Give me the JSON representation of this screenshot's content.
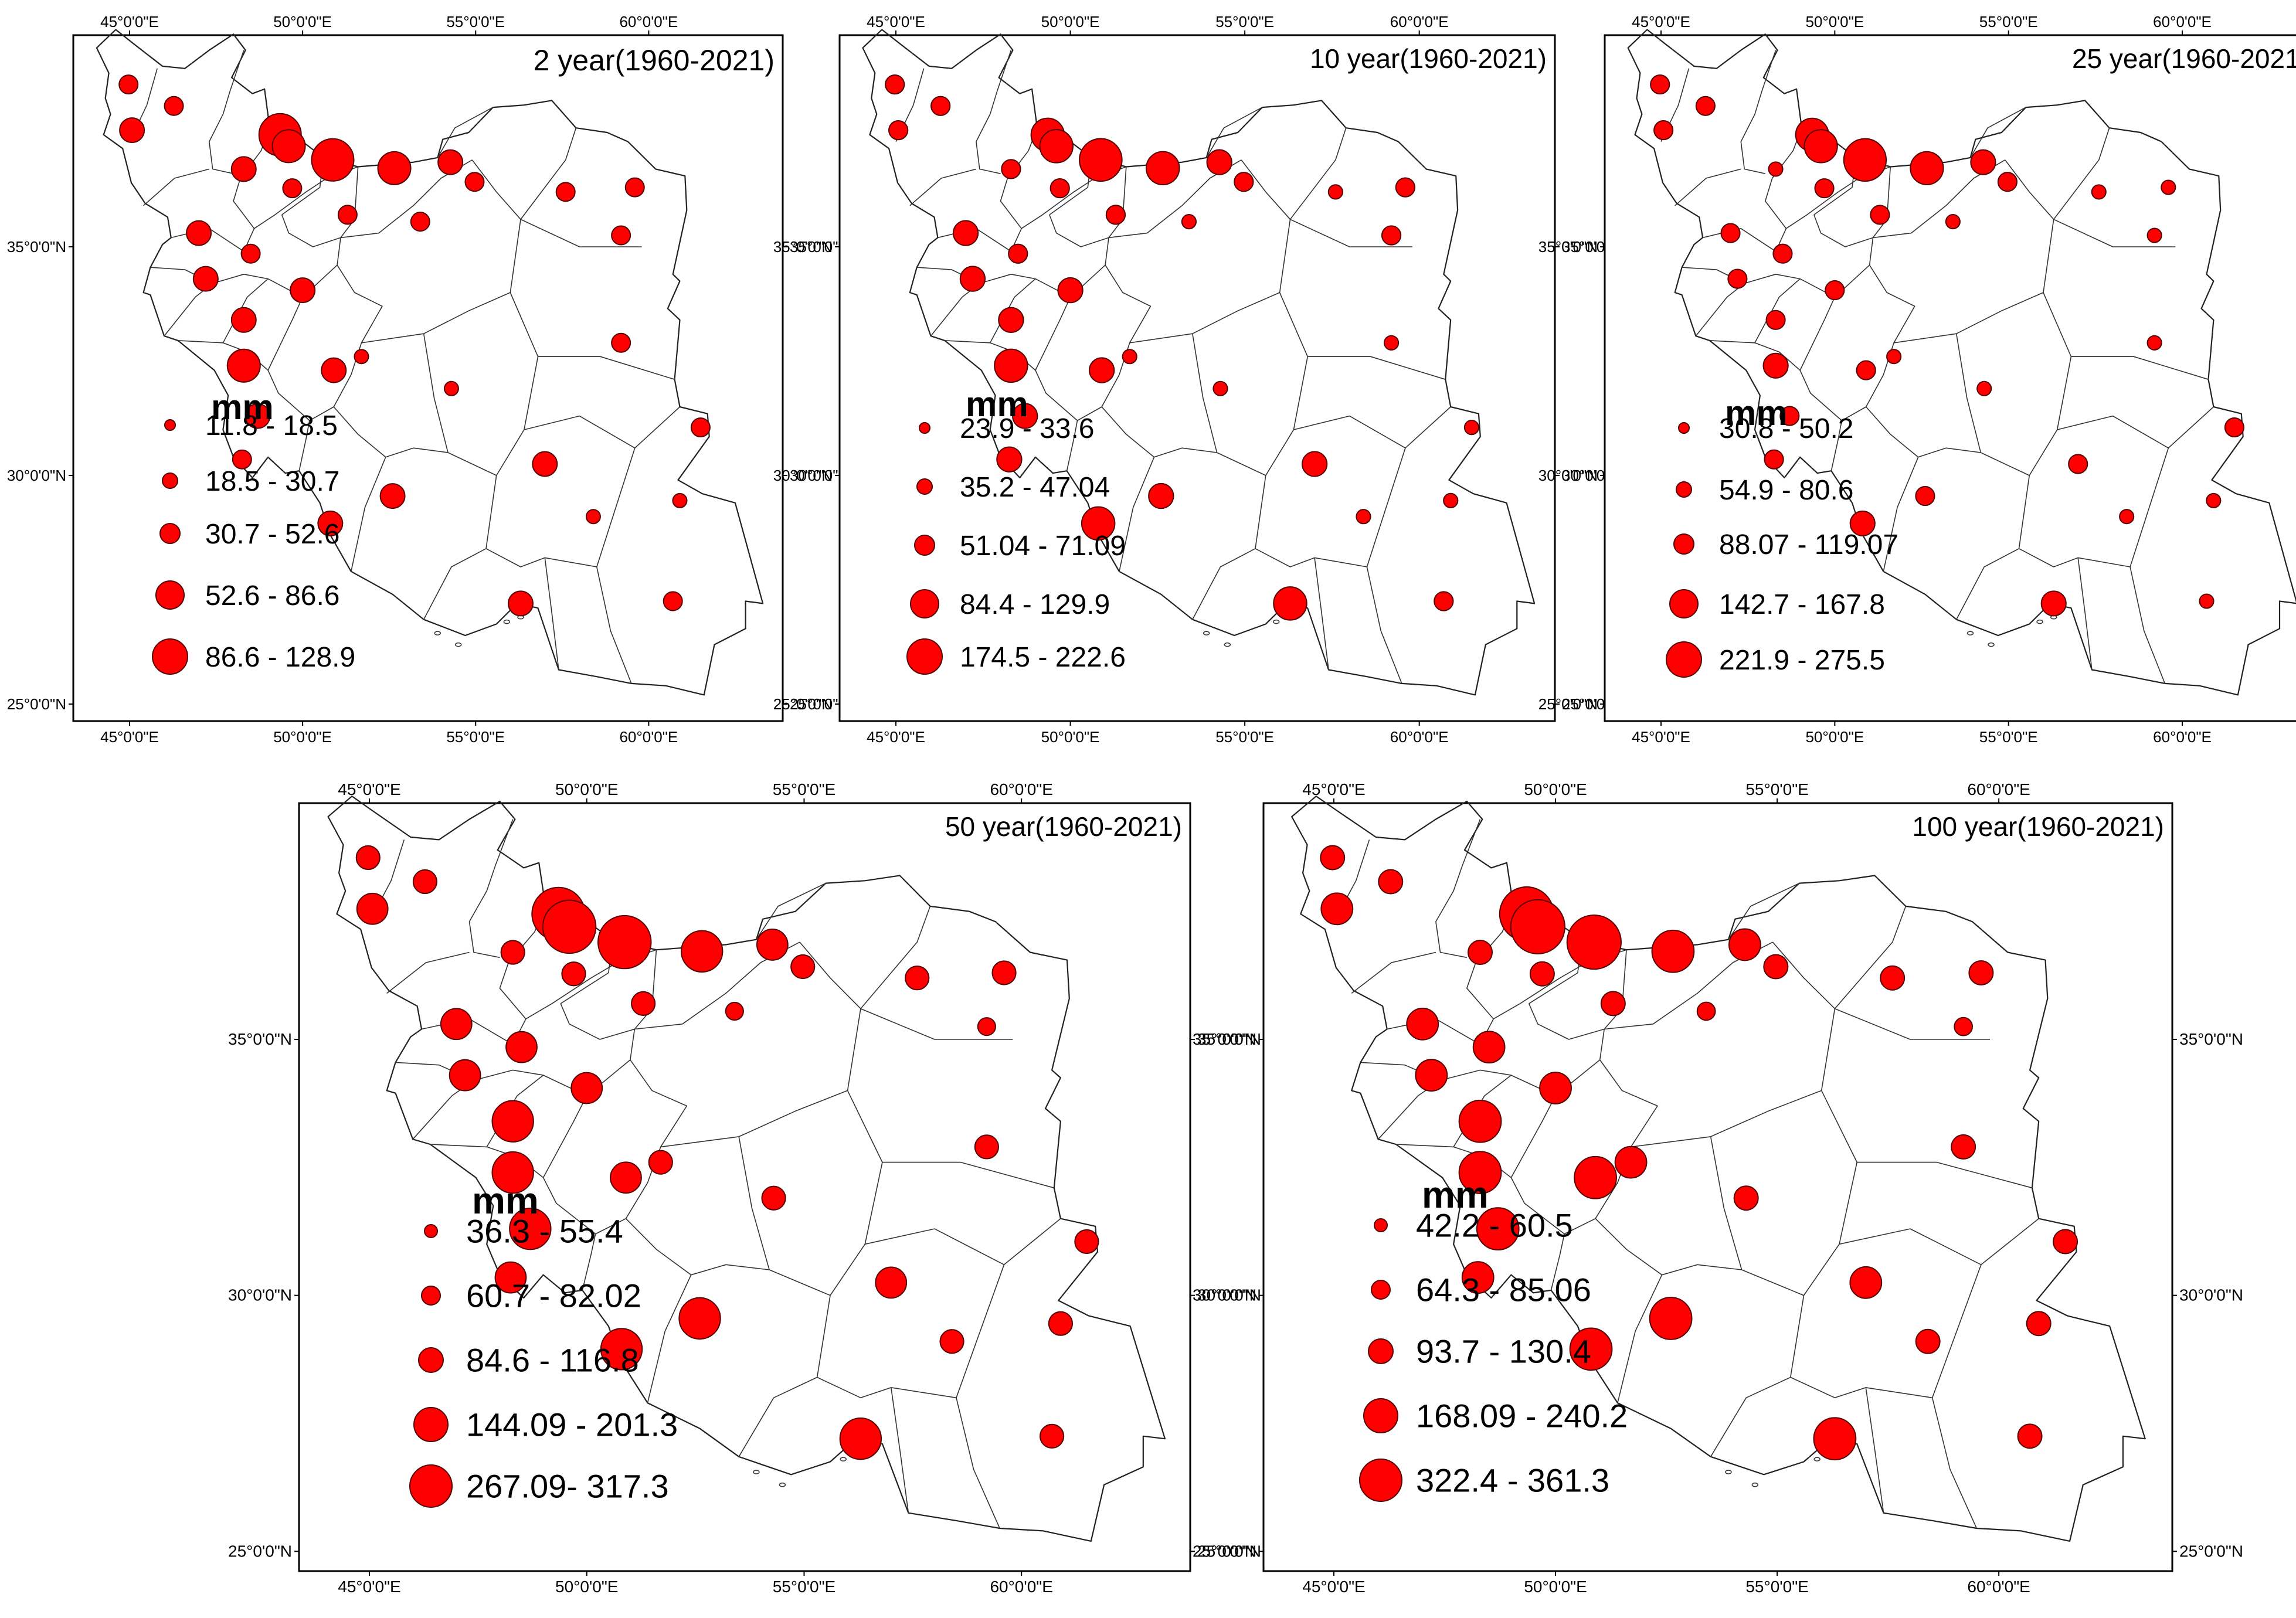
{
  "figure": {
    "unit_label": "mm",
    "lon_ticks": [
      "45°0'0\"E",
      "50°0'0\"E",
      "55°0'0\"E",
      "60°0'0\"E"
    ],
    "lat_ticks": [
      "35°0'0\"N",
      "30°0'0\"N",
      "25°0'0\"N"
    ],
    "marker_color": "#ff0000",
    "panels": [
      {
        "title": "2 year(1960-2021)",
        "legend": [
          "11.8 - 18.5",
          "18.5 - 30.7",
          "30.7 - 52.6",
          "52.6 - 86.6",
          "86.6 - 128.9"
        ]
      },
      {
        "title": "10 year(1960-2021)",
        "legend": [
          "23.9 - 33.6",
          "35.2 - 47.04",
          "51.04 - 71.09",
          "84.4 - 129.9",
          "174.5 - 222.6"
        ]
      },
      {
        "title": "25 year(1960-2021)",
        "legend": [
          "30.8 - 50.2",
          "54.9 - 80.6",
          "88.07 - 119.07",
          "142.7 - 167.8",
          "221.9 - 275.5"
        ]
      },
      {
        "title": "50 year(1960-2021)",
        "legend": [
          "36.3 - 55.4",
          "60.7 - 82.02",
          "84.6 - 116.8",
          "144.09 - 201.3",
          "267.09- 317.3"
        ]
      },
      {
        "title": "100 year(1960-2021)",
        "legend": [
          "42.2 - 60.5",
          "64.3 - 85.06",
          "93.7 - 130.4",
          "168.09 - 240.2",
          "322.4 - 361.3"
        ]
      }
    ],
    "stations": [
      {
        "lon": 44.97,
        "lat": 38.55,
        "c": [
          2,
          2,
          2,
          2,
          2
        ]
      },
      {
        "lon": 46.28,
        "lat": 38.08,
        "c": [
          2,
          2,
          2,
          2,
          2
        ]
      },
      {
        "lon": 45.07,
        "lat": 37.55,
        "c": [
          3,
          2,
          2,
          3,
          3
        ]
      },
      {
        "lon": 49.35,
        "lat": 37.45,
        "c": [
          5,
          4,
          4,
          5,
          5
        ]
      },
      {
        "lon": 49.6,
        "lat": 37.2,
        "c": [
          4,
          4,
          4,
          5,
          5
        ]
      },
      {
        "lon": 50.87,
        "lat": 36.9,
        "c": [
          5,
          5,
          5,
          5,
          5
        ]
      },
      {
        "lon": 52.65,
        "lat": 36.72,
        "c": [
          4,
          4,
          4,
          4,
          4
        ]
      },
      {
        "lon": 54.27,
        "lat": 36.85,
        "c": [
          3,
          3,
          3,
          3,
          3
        ]
      },
      {
        "lon": 54.97,
        "lat": 36.42,
        "c": [
          2,
          2,
          2,
          2,
          2
        ]
      },
      {
        "lon": 48.3,
        "lat": 36.7,
        "c": [
          3,
          2,
          1,
          2,
          2
        ]
      },
      {
        "lon": 49.7,
        "lat": 36.28,
        "c": [
          2,
          2,
          2,
          2,
          2
        ]
      },
      {
        "lon": 51.3,
        "lat": 35.7,
        "c": [
          2,
          2,
          2,
          2,
          2
        ]
      },
      {
        "lon": 53.4,
        "lat": 35.55,
        "c": [
          2,
          1,
          1,
          1,
          1
        ]
      },
      {
        "lon": 57.6,
        "lat": 36.2,
        "c": [
          2,
          1,
          1,
          2,
          2
        ]
      },
      {
        "lon": 59.6,
        "lat": 36.3,
        "c": [
          2,
          2,
          1,
          2,
          2
        ]
      },
      {
        "lon": 59.2,
        "lat": 35.25,
        "c": [
          2,
          2,
          1,
          1,
          1
        ]
      },
      {
        "lon": 59.2,
        "lat": 32.9,
        "c": [
          2,
          1,
          1,
          2,
          2
        ]
      },
      {
        "lon": 47.0,
        "lat": 35.3,
        "c": [
          3,
          3,
          2,
          3,
          3
        ]
      },
      {
        "lon": 48.5,
        "lat": 34.85,
        "c": [
          2,
          2,
          2,
          3,
          3
        ]
      },
      {
        "lon": 47.2,
        "lat": 34.3,
        "c": [
          3,
          3,
          2,
          3,
          3
        ]
      },
      {
        "lon": 50.0,
        "lat": 34.05,
        "c": [
          3,
          3,
          2,
          3,
          3
        ]
      },
      {
        "lon": 48.3,
        "lat": 33.4,
        "c": [
          3,
          3,
          2,
          4,
          4
        ]
      },
      {
        "lon": 48.3,
        "lat": 32.4,
        "c": [
          4,
          4,
          3,
          4,
          4
        ]
      },
      {
        "lon": 48.7,
        "lat": 31.3,
        "c": [
          3,
          3,
          2,
          4,
          4
        ]
      },
      {
        "lon": 50.9,
        "lat": 32.3,
        "c": [
          3,
          3,
          2,
          3,
          4
        ]
      },
      {
        "lon": 51.7,
        "lat": 32.6,
        "c": [
          1,
          1,
          1,
          2,
          3
        ]
      },
      {
        "lon": 54.3,
        "lat": 31.9,
        "c": [
          1,
          1,
          1,
          2,
          2
        ]
      },
      {
        "lon": 48.25,
        "lat": 30.35,
        "c": [
          2,
          3,
          2,
          3,
          3
        ]
      },
      {
        "lon": 50.8,
        "lat": 28.95,
        "c": [
          3,
          4,
          3,
          4,
          4
        ]
      },
      {
        "lon": 52.6,
        "lat": 29.55,
        "c": [
          3,
          3,
          2,
          4,
          4
        ]
      },
      {
        "lon": 57.0,
        "lat": 30.25,
        "c": [
          3,
          3,
          2,
          3,
          3
        ]
      },
      {
        "lon": 58.4,
        "lat": 29.1,
        "c": [
          1,
          1,
          1,
          2,
          2
        ]
      },
      {
        "lon": 61.5,
        "lat": 31.05,
        "c": [
          2,
          1,
          2,
          2,
          2
        ]
      },
      {
        "lon": 60.9,
        "lat": 29.45,
        "c": [
          1,
          1,
          1,
          2,
          2
        ]
      },
      {
        "lon": 60.7,
        "lat": 27.25,
        "c": [
          2,
          2,
          1,
          2,
          2
        ]
      },
      {
        "lon": 56.3,
        "lat": 27.2,
        "c": [
          3,
          4,
          3,
          4,
          4
        ]
      }
    ]
  }
}
